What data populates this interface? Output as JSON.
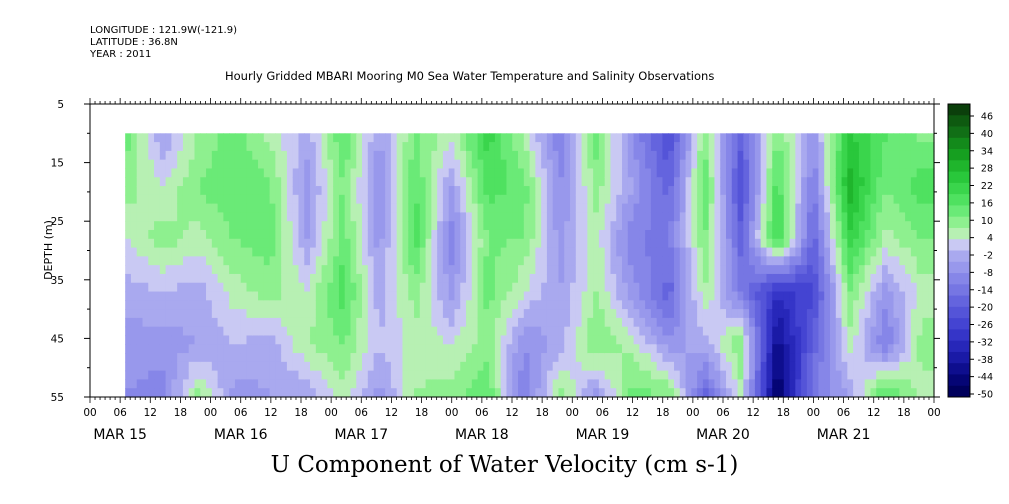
{
  "header": {
    "longitude": "LONGITUDE : 121.9W(-121.9)",
    "latitude": "LATITUDE : 36.8N",
    "year": "YEAR : 2011"
  },
  "chart_data": {
    "type": "heatmap",
    "title": "Hourly Gridded MBARI Mooring M0 Sea Water Temperature and Salinity Observations",
    "xlabel": "U Component of Water Velocity (cm s-1)",
    "ylabel": "DEPTH (m)",
    "ylim": [
      5,
      55
    ],
    "y_inverted": true,
    "yticks": [
      5,
      15,
      25,
      35,
      45,
      55
    ],
    "x_hour_ticks": [
      "00",
      "06",
      "12",
      "18",
      "00",
      "06",
      "12",
      "18",
      "00",
      "06",
      "12",
      "18",
      "00",
      "06",
      "12",
      "18",
      "00",
      "06",
      "12",
      "18",
      "00",
      "06",
      "12",
      "18",
      "00",
      "06",
      "12",
      "18",
      "00"
    ],
    "x_day_labels": [
      "MAR 15",
      "MAR 16",
      "MAR 17",
      "MAR 18",
      "MAR 19",
      "MAR 20",
      "MAR 21"
    ],
    "data_extent": {
      "start": "MAR 15 07:00",
      "end": "MAR 22 00:00",
      "depth_top": 10,
      "depth_bottom": 55
    },
    "colorbar": {
      "labels": [
        "46",
        "40",
        "34",
        "28",
        "22",
        "16",
        "10",
        "4",
        "-2",
        "-8",
        "-14",
        "-20",
        "-26",
        "-32",
        "-38",
        "-44",
        "-50"
      ],
      "colors": [
        "#0b3f0b",
        "#0e5a10",
        "#116f16",
        "#138a1b",
        "#169f20",
        "#1fb52c",
        "#29c73b",
        "#3ad54c",
        "#4fe160",
        "#6aea77",
        "#8ef08f",
        "#b7f0b3",
        "#c9c9f3",
        "#a9a9ef",
        "#9898ec",
        "#8686e8",
        "#7676e3",
        "#6464de",
        "#5454d8",
        "#4444d2",
        "#3535c8",
        "#2727b9",
        "#1a1aa6",
        "#0e0e8e",
        "#050575",
        "#00005c"
      ]
    },
    "column_profile": [
      {
        "day": 15.3,
        "u": [
          12,
          8,
          2,
          -4,
          -8,
          -10
        ]
      },
      {
        "day": 15.6,
        "u": [
          -6,
          2,
          8,
          -2,
          -8,
          -12
        ]
      },
      {
        "day": 15.9,
        "u": [
          6,
          10,
          4,
          -4,
          -6,
          8
        ]
      },
      {
        "day": 16.2,
        "u": [
          12,
          14,
          10,
          4,
          -2,
          -8
        ]
      },
      {
        "day": 16.5,
        "u": [
          4,
          10,
          12,
          8,
          -4,
          -6
        ]
      },
      {
        "day": 16.8,
        "u": [
          -4,
          -8,
          -6,
          2,
          6,
          -6
        ]
      },
      {
        "day": 17.1,
        "u": [
          14,
          10,
          12,
          16,
          10,
          4
        ]
      },
      {
        "day": 17.4,
        "u": [
          -6,
          -10,
          -8,
          -4,
          -2,
          -8
        ]
      },
      {
        "day": 17.7,
        "u": [
          10,
          14,
          16,
          8,
          4,
          6
        ]
      },
      {
        "day": 18.0,
        "u": [
          4,
          -6,
          -12,
          -8,
          2,
          8
        ]
      },
      {
        "day": 18.3,
        "u": [
          20,
          16,
          10,
          12,
          8,
          14
        ]
      },
      {
        "day": 18.6,
        "u": [
          4,
          12,
          10,
          2,
          -10,
          -14
        ]
      },
      {
        "day": 18.9,
        "u": [
          -14,
          -10,
          -8,
          -6,
          -4,
          8
        ]
      },
      {
        "day": 19.2,
        "u": [
          12,
          8,
          4,
          6,
          10,
          -8
        ]
      },
      {
        "day": 19.5,
        "u": [
          -10,
          -6,
          -14,
          -8,
          4,
          12
        ]
      },
      {
        "day": 19.8,
        "u": [
          -26,
          -20,
          -14,
          -20,
          -8,
          10
        ]
      },
      {
        "day": 20.1,
        "u": [
          8,
          14,
          10,
          6,
          -4,
          -20
        ]
      },
      {
        "day": 20.4,
        "u": [
          -20,
          -26,
          -20,
          -14,
          10,
          4
        ]
      },
      {
        "day": 20.7,
        "u": [
          10,
          16,
          20,
          -32,
          -44,
          -50
        ]
      },
      {
        "day": 21.0,
        "u": [
          -8,
          -14,
          -20,
          -26,
          -20,
          -14
        ]
      },
      {
        "day": 21.3,
        "u": [
          22,
          28,
          20,
          10,
          4,
          -6
        ]
      },
      {
        "day": 21.6,
        "u": [
          14,
          10,
          4,
          -8,
          -14,
          16
        ]
      },
      {
        "day": 21.9,
        "u": [
          8,
          16,
          10,
          4,
          8,
          4
        ]
      }
    ]
  }
}
